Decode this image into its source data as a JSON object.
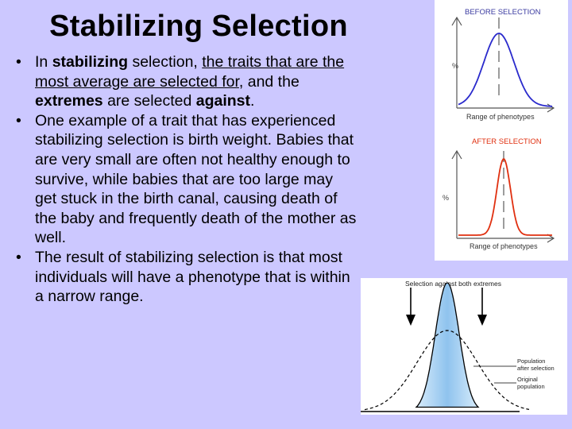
{
  "slide": {
    "title": "Stabilizing Selection",
    "bullet_symbol": "•",
    "bullet1": {
      "p1": "In ",
      "p2": "stabilizing",
      "p3": " selection, ",
      "p4": "the traits that are the most average are selected for",
      "p5": ", and the ",
      "p6": "extremes",
      "p7": " are selected ",
      "p8": "against",
      "p9": "."
    },
    "bullet2": "One example of a trait that has experienced stabilizing selection is birth weight.  Babies that are very small are often not healthy enough to survive, while babies that are too large may get stuck in the birth canal, causing death of the baby and frequently death of the mother as well.",
    "bullet3": "The result of stabilizing selection is that most individuals will have a phenotype that is within a narrow range."
  },
  "figure_top": {
    "before_title": "BEFORE SELECTION",
    "after_title": "AFTER SELECTION",
    "y_label": "%",
    "x_label": "Range of phenotypes",
    "before_color": "#2a2acc",
    "after_color": "#e03010"
  },
  "figure_bottom": {
    "title": "Selection against both extremes",
    "label_after": "Population after selection",
    "label_original": "Original population",
    "fill_color": "#8fc3ee"
  }
}
